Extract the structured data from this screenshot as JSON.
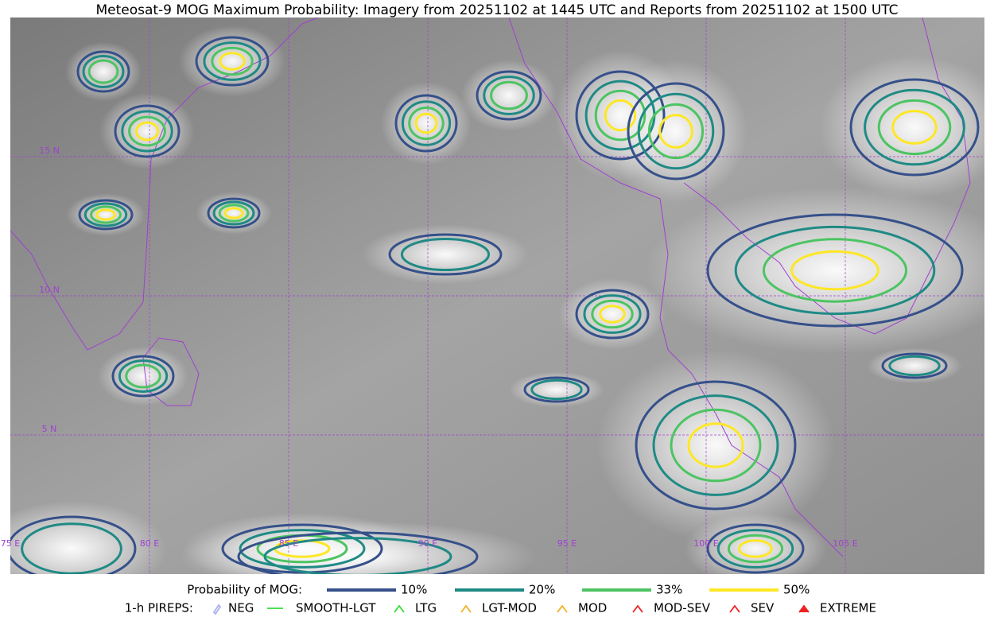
{
  "title": "Meteosat-9 MOG Maximum Probability: Imagery from 20251102 at 1445 UTC and Reports from 20251102 at 1500 UTC",
  "map": {
    "lat_labels": [
      "15 N",
      "10 N",
      "5 N"
    ],
    "lon_labels": [
      "75 E",
      "80 E",
      "85 E",
      "90 E",
      "95 E",
      "100 E",
      "105 E"
    ]
  },
  "legend": {
    "title": "Probability of MOG:",
    "levels": [
      "10%",
      "20%",
      "33%",
      "50%"
    ],
    "pireps_title": "1-h PIREPS:",
    "pireps": [
      "NEG",
      "SMOOTH-LGT",
      "LTG",
      "LGT-MOD",
      "MOD",
      "MOD-SEV",
      "SEV",
      "EXTREME"
    ]
  }
}
